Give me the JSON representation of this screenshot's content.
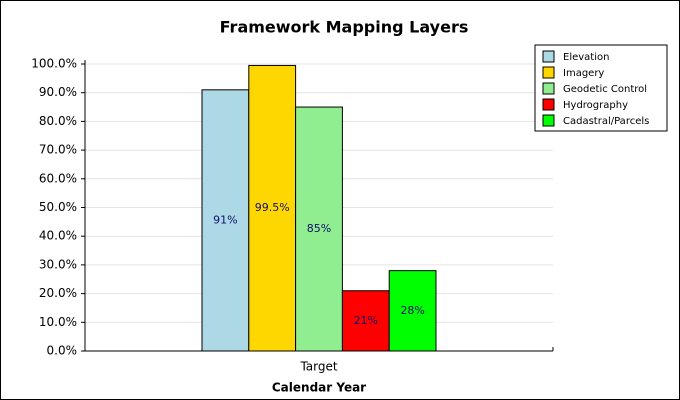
{
  "chart_data": {
    "type": "bar",
    "title": "Framework Mapping Layers",
    "x_label": "Calendar Year",
    "categories": [
      "Target"
    ],
    "series": [
      {
        "name": "Elevation",
        "color": "#add8e6",
        "values": [
          91
        ],
        "value_labels": [
          "91%"
        ]
      },
      {
        "name": "Imagery",
        "color": "#ffd700",
        "values": [
          99.5
        ],
        "value_labels": [
          "99.5%"
        ]
      },
      {
        "name": "Geodetic Control",
        "color": "#90ee90",
        "values": [
          85
        ],
        "value_labels": [
          "85%"
        ]
      },
      {
        "name": "Hydrography",
        "color": "#ff0000",
        "values": [
          21
        ],
        "value_labels": [
          "21%"
        ]
      },
      {
        "name": "Cadastral/Parcels",
        "color": "#00ff00",
        "values": [
          28
        ],
        "value_labels": [
          "28%"
        ]
      }
    ],
    "ylim": [
      0,
      100
    ],
    "yticks": [
      {
        "value": 0,
        "label": "0.0%"
      },
      {
        "value": 10,
        "label": "10.0%"
      },
      {
        "value": 20,
        "label": "20.0%"
      },
      {
        "value": 30,
        "label": "30.0%"
      },
      {
        "value": 40,
        "label": "40.0%"
      },
      {
        "value": 50,
        "label": "50.0%"
      },
      {
        "value": 60,
        "label": "60.0%"
      },
      {
        "value": 70,
        "label": "70.0%"
      },
      {
        "value": 80,
        "label": "80.0%"
      },
      {
        "value": 90,
        "label": "90.0%"
      },
      {
        "value": 100,
        "label": "100.0%"
      }
    ],
    "grid": true,
    "legend": "upper right"
  }
}
